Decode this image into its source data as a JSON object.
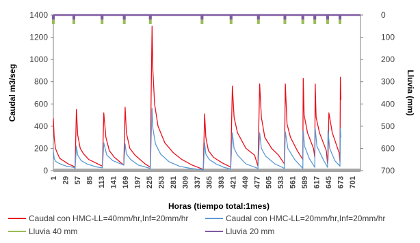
{
  "chart_data": {
    "type": "line",
    "title": "",
    "xlabel": "Horas (tiempo total:1mes)",
    "ylabel": "Caudal m3/seg",
    "y2label": "Lluvia (mm)",
    "ylim": [
      0,
      1400
    ],
    "yticks": [
      0,
      200,
      400,
      600,
      800,
      1000,
      1200,
      1400
    ],
    "y2lim": [
      0,
      700
    ],
    "y2ticks": [
      0,
      100,
      200,
      300,
      400,
      500,
      600,
      700
    ],
    "y2_inverted": true,
    "xlim": [
      1,
      720
    ],
    "xticks": [
      1,
      29,
      57,
      85,
      113,
      141,
      169,
      197,
      225,
      253,
      281,
      309,
      337,
      365,
      393,
      421,
      449,
      477,
      505,
      533,
      561,
      589,
      617,
      645,
      673,
      701
    ],
    "legend_position": "bottom",
    "grid": false,
    "series": [
      {
        "name": "Caudal con HMC-LL=40mm/hr,Inf=20mm/hr",
        "axis": "left",
        "color": "#e8101c",
        "x": [
          1,
          3,
          6,
          10,
          16,
          24,
          36,
          48,
          52,
          55,
          58,
          64,
          72,
          84,
          100,
          116,
          119,
          124,
          132,
          144,
          166,
          169,
          172,
          180,
          192,
          216,
          228,
          230,
          232,
          234,
          238,
          246,
          262,
          282,
          302,
          326,
          346,
          352,
          355,
          358,
          364,
          376,
          396,
          412,
          416,
          420,
          424,
          432,
          452,
          472,
          480,
          484,
          488,
          496,
          512,
          528,
          542,
          544,
          548,
          556,
          572,
          585,
          586,
          588,
          596,
          610,
          613,
          614,
          616,
          624,
          640,
          643,
          644,
          646,
          654,
          670,
          672,
          673,
          674,
          675
        ],
        "y": [
          470,
          300,
          200,
          160,
          110,
          90,
          60,
          40,
          30,
          550,
          320,
          200,
          150,
          100,
          70,
          40,
          520,
          300,
          180,
          120,
          50,
          570,
          340,
          200,
          140,
          60,
          30,
          700,
          1300,
          900,
          600,
          400,
          250,
          160,
          100,
          50,
          20,
          10,
          510,
          300,
          180,
          120,
          70,
          40,
          30,
          760,
          480,
          340,
          200,
          140,
          40,
          780,
          480,
          300,
          200,
          140,
          60,
          780,
          420,
          300,
          180,
          100,
          830,
          500,
          340,
          200,
          120,
          780,
          480,
          340,
          180,
          60,
          100,
          520,
          340,
          160,
          80,
          840,
          640,
          640
        ]
      },
      {
        "name": "Caudal con HMC-LL=20mm/hr,Inf=20mm/hr",
        "axis": "left",
        "color": "#5b9bd5",
        "x": [
          1,
          3,
          6,
          12,
          20,
          32,
          48,
          52,
          55,
          58,
          66,
          80,
          100,
          116,
          119,
          126,
          140,
          166,
          169,
          172,
          182,
          200,
          228,
          230,
          232,
          234,
          240,
          252,
          272,
          296,
          322,
          346,
          352,
          355,
          358,
          366,
          382,
          400,
          416,
          420,
          424,
          432,
          452,
          480,
          484,
          488,
          498,
          520,
          542,
          544,
          550,
          566,
          585,
          586,
          589,
          600,
          613,
          614,
          618,
          634,
          643,
          644,
          648,
          660,
          672,
          673,
          674,
          675
        ],
        "y": [
          180,
          110,
          85,
          70,
          55,
          40,
          30,
          20,
          220,
          140,
          90,
          60,
          35,
          25,
          250,
          140,
          90,
          50,
          240,
          150,
          100,
          50,
          20,
          300,
          560,
          380,
          240,
          150,
          80,
          40,
          20,
          10,
          5,
          250,
          150,
          100,
          60,
          30,
          15,
          340,
          200,
          140,
          60,
          20,
          340,
          200,
          130,
          60,
          20,
          350,
          200,
          100,
          20,
          360,
          220,
          110,
          30,
          380,
          220,
          90,
          30,
          360,
          200,
          90,
          40,
          380,
          300,
          300
        ]
      },
      {
        "name": "Lluvia 40 mm",
        "axis": "right",
        "color": "#9bbb59",
        "x": [
          1,
          49,
          115,
          167,
          228,
          349,
          417,
          481,
          543,
          585,
          613,
          643,
          672
        ],
        "y": [
          40,
          40,
          40,
          40,
          40,
          40,
          40,
          40,
          40,
          40,
          40,
          40,
          40
        ]
      },
      {
        "name": "Lluvia 20 mm",
        "axis": "right",
        "color": "#7f5aa2",
        "x": [
          1,
          49,
          115,
          167,
          228,
          349,
          417,
          481,
          543,
          585,
          613,
          643,
          672
        ],
        "y": [
          20,
          20,
          20,
          20,
          20,
          20,
          20,
          20,
          20,
          20,
          20,
          20,
          20
        ]
      }
    ]
  }
}
